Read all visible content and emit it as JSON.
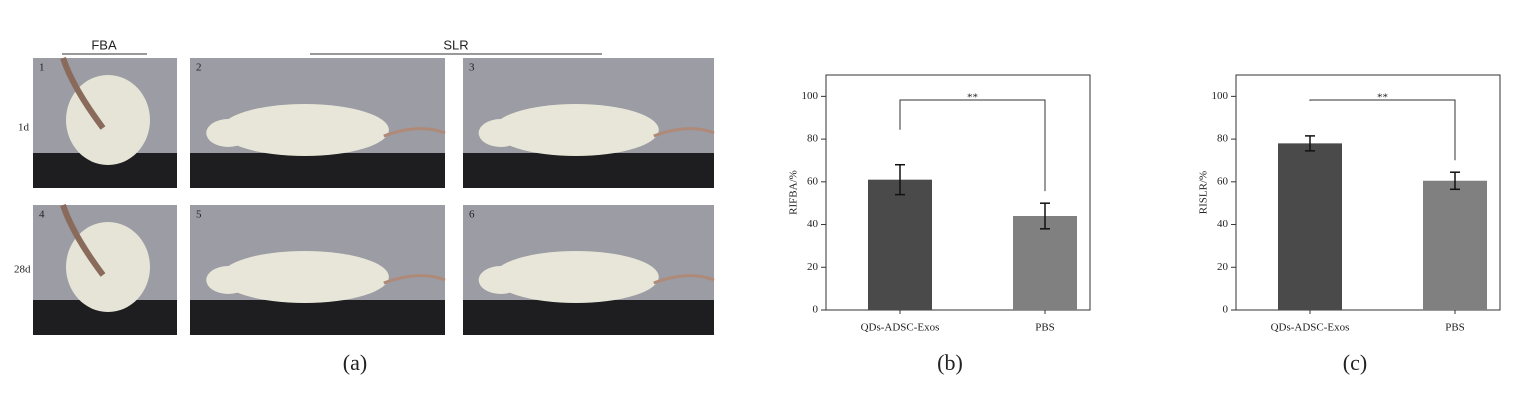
{
  "photo_panel": {
    "columns": [
      "FBA",
      "SLR"
    ],
    "rows": [
      "1d",
      "28d"
    ],
    "photo_numbers": [
      "1",
      "2",
      "3",
      "4",
      "5",
      "6"
    ],
    "caption": "(a)"
  },
  "chart_data": [
    {
      "type": "bar",
      "ylabel": "RIFBA/%",
      "categories": [
        "QDs-ADSC-Exos",
        "PBS"
      ],
      "values": [
        61,
        44
      ],
      "errors": [
        7,
        6
      ],
      "colors": [
        "#4a4a4a",
        "#808080"
      ],
      "ylim": [
        0,
        110
      ],
      "yticks": [
        0,
        20,
        40,
        60,
        80,
        100
      ],
      "significance": "**",
      "caption": "(b)"
    },
    {
      "type": "bar",
      "ylabel": "RISLR/%",
      "categories": [
        "QDs-ADSC-Exos",
        "PBS"
      ],
      "values": [
        78,
        60.5
      ],
      "errors": [
        3.5,
        4
      ],
      "colors": [
        "#4a4a4a",
        "#808080"
      ],
      "ylim": [
        0,
        110
      ],
      "yticks": [
        0,
        20,
        40,
        60,
        80,
        100
      ],
      "significance": "**",
      "caption": "(c)"
    }
  ]
}
